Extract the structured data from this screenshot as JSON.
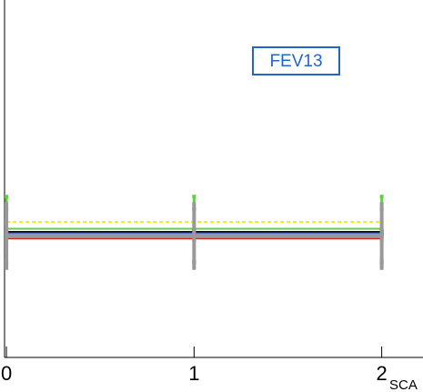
{
  "chart_data": {
    "type": "line",
    "annotation": "FEV13",
    "x_label": "SCA",
    "x": [
      0,
      1,
      2
    ],
    "xlim": [
      -0.01,
      2.22
    ],
    "xticks": [
      0,
      1,
      2
    ],
    "ylim": [
      0,
      1
    ],
    "series": [
      {
        "color": "#66cc44",
        "values": [
          0.36,
          0.36,
          0.36
        ],
        "errors": [
          0.09,
          0.09,
          0.09
        ]
      },
      {
        "color": "#dd0033",
        "values": [
          0.34,
          0.34,
          0.34
        ],
        "errors": [
          0.075,
          0.075,
          0.075
        ]
      },
      {
        "color": "#eeee22",
        "values": [
          0.379,
          0.379,
          0.379
        ],
        "errors": [
          0.006,
          0.006,
          0.006
        ],
        "dashed": true
      },
      {
        "color": "#000000",
        "values": [
          0.351,
          0.351,
          0.351
        ],
        "errors": [
          0.004,
          0.004,
          0.004
        ]
      },
      {
        "color": "#ff00ff",
        "values": [
          0.344,
          0.344,
          0.344
        ],
        "errors": [
          0.004,
          0.004,
          0.004
        ]
      },
      {
        "color": "#4466cc",
        "values": [
          0.347,
          0.347,
          0.347
        ],
        "errors": [
          0.004,
          0.004,
          0.004
        ]
      },
      {
        "color": "#cc2222",
        "values": [
          0.333,
          0.333,
          0.333
        ],
        "errors": [
          0.004,
          0.004,
          0.004
        ]
      },
      {
        "color": "#999999",
        "values": [
          0.34,
          0.34,
          0.34
        ],
        "errors": [
          0.09,
          0.09,
          0.09
        ],
        "width": 5
      }
    ]
  }
}
